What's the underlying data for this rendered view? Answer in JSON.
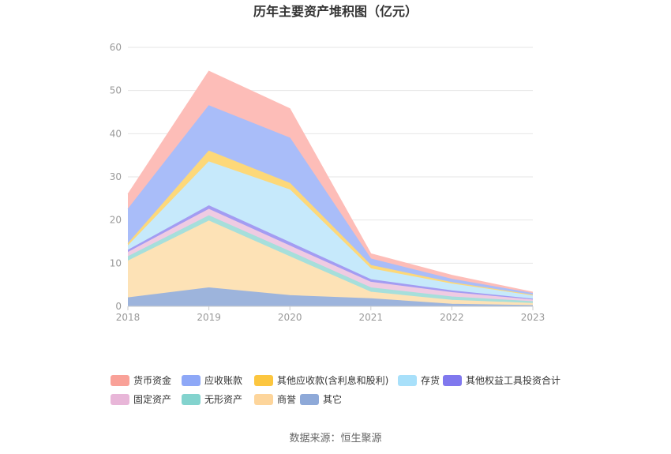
{
  "chart_data": {
    "type": "area",
    "stacked": true,
    "title": "历年主要资产堆积图（亿元）",
    "x": [
      "2018",
      "2019",
      "2020",
      "2021",
      "2022",
      "2023"
    ],
    "ylim": [
      0,
      60
    ],
    "yticks": [
      0,
      10,
      20,
      30,
      40,
      50,
      60
    ],
    "grid": true,
    "legend_position": "bottom",
    "series": [
      {
        "name": "其它",
        "color": "#9db4dc",
        "values": [
          2.0,
          4.3,
          2.5,
          1.8,
          0.5,
          0.2
        ]
      },
      {
        "name": "商誉",
        "color": "#fde2b6",
        "values": [
          8.5,
          15.5,
          9.0,
          1.5,
          0.9,
          0.5
        ]
      },
      {
        "name": "无形资产",
        "color": "#a6dfdb",
        "values": [
          1.0,
          1.2,
          1.2,
          1.0,
          0.8,
          0.4
        ]
      },
      {
        "name": "固定资产",
        "color": "#efcbe2",
        "values": [
          1.0,
          1.5,
          1.3,
          1.3,
          1.0,
          0.4
        ]
      },
      {
        "name": "其他权益工具投资合计",
        "color": "#a39cf2",
        "values": [
          0.5,
          0.8,
          0.8,
          0.6,
          0.4,
          0.2
        ]
      },
      {
        "name": "存货",
        "color": "#c6e9fb",
        "values": [
          1.0,
          10.2,
          12.2,
          2.5,
          1.6,
          0.8
        ]
      },
      {
        "name": "其他应收款(含利息和股利)",
        "color": "#fdd879",
        "values": [
          0.5,
          2.5,
          1.5,
          0.8,
          0.3,
          0.1
        ]
      },
      {
        "name": "应收账款",
        "color": "#a9bdf9",
        "values": [
          8.0,
          10.5,
          10.5,
          1.5,
          0.8,
          0.4
        ]
      },
      {
        "name": "货币资金",
        "color": "#fdbdb8",
        "values": [
          3.5,
          8.0,
          6.8,
          1.2,
          0.9,
          0.3
        ]
      }
    ],
    "legend": [
      {
        "name": "货币资金",
        "color": "#f9a198"
      },
      {
        "name": "应收账款",
        "color": "#8ea8f7"
      },
      {
        "name": "其他应收款(含利息和股利)",
        "color": "#fcc63f"
      },
      {
        "name": "存货",
        "color": "#a8e0fa"
      },
      {
        "name": "其他权益工具投资合计",
        "color": "#8078ee"
      },
      {
        "name": "固定资产",
        "color": "#e8b6d8"
      },
      {
        "name": "无形资产",
        "color": "#83d3ce"
      },
      {
        "name": "商誉",
        "color": "#fdd59b"
      },
      {
        "name": "其它",
        "color": "#8ea9d8"
      }
    ]
  },
  "footer": {
    "source": "数据来源：恒生聚源"
  }
}
